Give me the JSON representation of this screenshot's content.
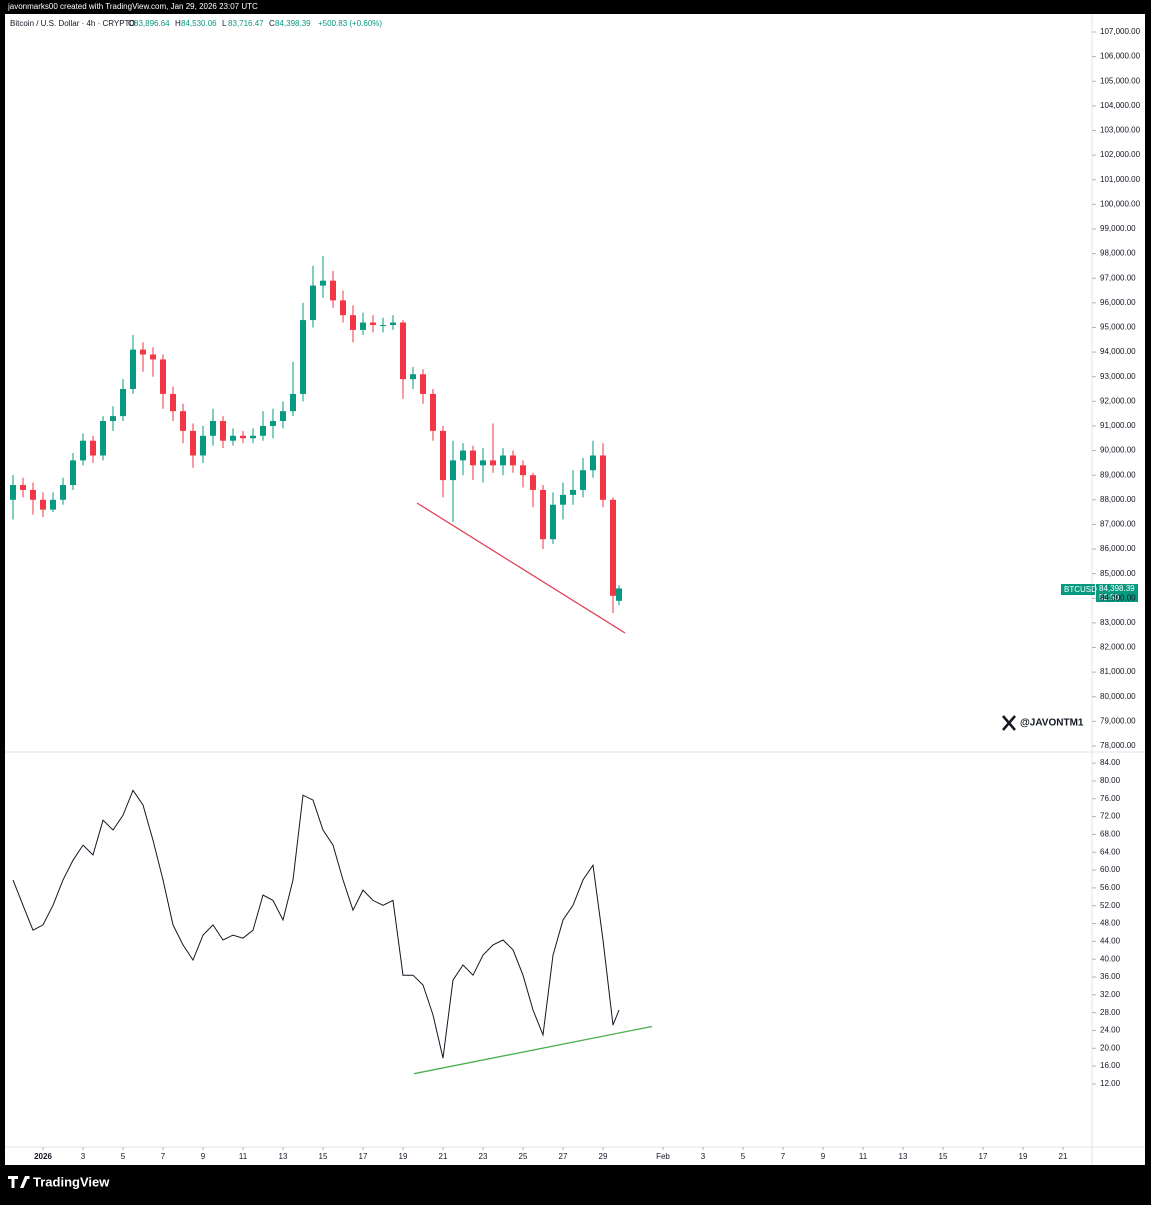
{
  "header": {
    "caption": "javonmarks00 created with TradingView.com, Jan 29, 2026 23:07 UTC",
    "symbol": "Bitcoin / U.S. Dollar · 4h · CRYPTO",
    "ohlc": [
      {
        "key": "O",
        "text": "83,896.64"
      },
      {
        "key": "H",
        "text": "84,530.06"
      },
      {
        "key": "L",
        "text": "83,716.47"
      },
      {
        "key": "C",
        "text": "84,398.39"
      }
    ],
    "change": "+500.83 (+0.60%)"
  },
  "price_tag": {
    "symbol": "BTCUSD",
    "price": "84,398.39",
    "countdown": "52:50"
  },
  "watermark": "@JAVONTM1",
  "footer": {
    "brand": "TradingView"
  },
  "chart_data": [
    {
      "type": "candlestick",
      "up_color": "#089981",
      "down_color": "#f23645",
      "x": [
        -0.5,
        0,
        0.5,
        1,
        1.5,
        2,
        2.5,
        3,
        3.5,
        4,
        4.5,
        5,
        5.5,
        6,
        6.5,
        7,
        7.5,
        8,
        8.5,
        9,
        9.5,
        10,
        10.5,
        11,
        11.5,
        12,
        12.5,
        13,
        13.5,
        14,
        14.5,
        15,
        15.5,
        16,
        16.5,
        17,
        17.5,
        18,
        18.5,
        19,
        19.5,
        20,
        20.5,
        21,
        21.5,
        22,
        22.5,
        23,
        23.5,
        24,
        24.5,
        25,
        25.5,
        26,
        26.5,
        27,
        27.5,
        28,
        28.5,
        29,
        29.5,
        29.8
      ],
      "open": [
        88000,
        88600,
        88400,
        88000,
        87600,
        88000,
        88600,
        89600,
        90400,
        89800,
        91200,
        91400,
        92500,
        94100,
        93900,
        93700,
        92300,
        91600,
        90800,
        89800,
        90600,
        91200,
        90400,
        90600,
        90500,
        90600,
        91000,
        91200,
        91600,
        92300,
        95300,
        96700,
        96900,
        96100,
        95500,
        94900,
        95200,
        95100,
        95100,
        95200,
        92900,
        93100,
        92300,
        90800,
        88800,
        89600,
        90000,
        89400,
        89600,
        89400,
        89800,
        89400,
        89000,
        88400,
        86400,
        87800,
        88200,
        88400,
        89200,
        89800,
        88000,
        83896.64
      ],
      "high": [
        89000,
        88900,
        88700,
        88300,
        88300,
        88900,
        89900,
        90700,
        90600,
        91400,
        91800,
        92900,
        94700,
        94400,
        94200,
        93900,
        92600,
        91900,
        91100,
        91000,
        91700,
        91400,
        90900,
        90800,
        90900,
        91600,
        91700,
        92000,
        93600,
        96000,
        97500,
        97900,
        97300,
        96500,
        95900,
        95600,
        95500,
        95400,
        95500,
        95300,
        93400,
        93300,
        92500,
        91000,
        90400,
        90300,
        90200,
        90100,
        91100,
        90100,
        90000,
        89600,
        89100,
        88600,
        88300,
        88700,
        89200,
        89700,
        90400,
        90300,
        88100,
        84530.06
      ],
      "low": [
        87200,
        88100,
        87400,
        87300,
        87500,
        87800,
        88400,
        89400,
        89500,
        89600,
        90800,
        91200,
        92300,
        93200,
        93000,
        91700,
        91200,
        90300,
        89300,
        89500,
        90200,
        90100,
        90200,
        90300,
        90300,
        90400,
        90500,
        90900,
        91400,
        92000,
        95000,
        96200,
        95800,
        95200,
        94400,
        94700,
        94800,
        94800,
        94900,
        92100,
        92500,
        91900,
        90400,
        88100,
        87100,
        89000,
        88800,
        88700,
        89100,
        89000,
        89100,
        88500,
        87700,
        86000,
        86200,
        87200,
        87800,
        88100,
        88900,
        87700,
        83400,
        83716.47
      ],
      "close": [
        88600,
        88400,
        88000,
        87600,
        88000,
        88600,
        89600,
        90400,
        89800,
        91200,
        91400,
        92500,
        94100,
        93900,
        93700,
        92300,
        91600,
        90800,
        89800,
        90600,
        91200,
        90400,
        90600,
        90500,
        90600,
        91000,
        91200,
        91600,
        92300,
        95300,
        96700,
        96900,
        96100,
        95500,
        94900,
        95200,
        95100,
        95100,
        95200,
        92900,
        93100,
        92300,
        90800,
        88800,
        89600,
        90000,
        89400,
        89600,
        89400,
        89800,
        89400,
        89000,
        88400,
        86400,
        87800,
        88200,
        88400,
        89200,
        89800,
        88000,
        84100,
        84398.39
      ],
      "trendline": {
        "color": "#e0435a",
        "x": [
          19.7,
          30.1
        ],
        "y": [
          87870,
          82590
        ]
      },
      "xlim": [
        -0.9,
        53.35
      ],
      "xticks": [
        {
          "value": 1,
          "label": "2026"
        },
        3,
        5,
        7,
        9,
        11,
        13,
        15,
        17,
        19,
        21,
        23,
        25,
        27,
        29,
        {
          "value": 32,
          "label": "Feb"
        },
        {
          "value": 34,
          "label": "3"
        },
        {
          "value": 36,
          "label": "5"
        },
        {
          "value": 38,
          "label": "7"
        },
        {
          "value": 40,
          "label": "9"
        },
        {
          "value": 42,
          "label": "11"
        },
        {
          "value": 44,
          "label": "13"
        },
        {
          "value": 46,
          "label": "15"
        },
        {
          "value": 48,
          "label": "17"
        },
        {
          "value": 50,
          "label": "19"
        },
        {
          "value": 52,
          "label": "21"
        }
      ],
      "ylim": [
        77756,
        107691
      ],
      "yticks": [
        {
          "value": 78000,
          "label": "78,000.00"
        },
        {
          "value": 79000,
          "label": "79,000.00"
        },
        {
          "value": 80000,
          "label": "80,000.00"
        },
        {
          "value": 81000,
          "label": "81,000.00"
        },
        {
          "value": 82000,
          "label": "82,000.00"
        },
        {
          "value": 83000,
          "label": "83,000.00"
        },
        {
          "value": 84000,
          "label": "84,000.00"
        },
        {
          "value": 85000,
          "label": "85,000.00"
        },
        {
          "value": 86000,
          "label": "86,000.00"
        },
        {
          "value": 87000,
          "label": "87,000.00"
        },
        {
          "value": 88000,
          "label": "88,000.00"
        },
        {
          "value": 89000,
          "label": "89,000.00"
        },
        {
          "value": 90000,
          "label": "90,000.00"
        },
        {
          "value": 91000,
          "label": "91,000.00"
        },
        {
          "value": 92000,
          "label": "92,000.00"
        },
        {
          "value": 93000,
          "label": "93,000.00"
        },
        {
          "value": 94000,
          "label": "94,000.00"
        },
        {
          "value": 95000,
          "label": "95,000.00"
        },
        {
          "value": 96000,
          "label": "96,000.00"
        },
        {
          "value": 97000,
          "label": "97,000.00"
        },
        {
          "value": 98000,
          "label": "98,000.00"
        },
        {
          "value": 99000,
          "label": "99,000.00"
        },
        {
          "value": 100000,
          "label": "100,000.00"
        },
        {
          "value": 101000,
          "label": "101,000.00"
        },
        {
          "value": 102000,
          "label": "102,000.00"
        },
        {
          "value": 103000,
          "label": "103,000.00"
        },
        {
          "value": 104000,
          "label": "104,000.00"
        },
        {
          "value": 105000,
          "label": "105,000.00"
        },
        {
          "value": 106000,
          "label": "106,000.00"
        },
        {
          "value": 107000,
          "label": "107,000.00"
        }
      ]
    },
    {
      "type": "line",
      "color": "#131722",
      "x": [
        -0.5,
        0,
        0.5,
        1,
        1.5,
        2,
        2.5,
        3,
        3.5,
        4,
        4.5,
        5,
        5.5,
        6,
        6.5,
        7,
        7.5,
        8,
        8.5,
        9,
        9.5,
        10,
        10.5,
        11,
        11.5,
        12,
        12.5,
        13,
        13.5,
        14,
        14.5,
        15,
        15.5,
        16,
        16.5,
        17,
        17.5,
        18,
        18.5,
        19,
        19.5,
        20,
        20.5,
        21,
        21.5,
        22,
        22.5,
        23,
        23.5,
        24,
        24.5,
        25,
        25.5,
        26,
        26.5,
        27,
        27.5,
        28,
        28.5,
        29,
        29.5,
        29.8
      ],
      "values": [
        57.8,
        52.1,
        46.5,
        47.7,
        52.1,
        57.8,
        62.2,
        65.6,
        63.4,
        71.2,
        69.0,
        72.3,
        77.9,
        74.6,
        66.7,
        57.8,
        47.7,
        43.2,
        39.8,
        45.4,
        47.7,
        44.3,
        45.4,
        44.7,
        46.5,
        54.4,
        53.2,
        48.8,
        57.8,
        76.8,
        75.7,
        69.0,
        65.6,
        57.8,
        51.0,
        55.5,
        53.2,
        52.1,
        53.2,
        36.4,
        36.4,
        34.2,
        27.5,
        17.8,
        35.3,
        38.7,
        36.4,
        40.9,
        43.2,
        44.3,
        42.1,
        36.4,
        28.6,
        23.0,
        40.9,
        48.8,
        52.1,
        57.8,
        61.1,
        44.3,
        25.2,
        28.6
      ],
      "trendline": {
        "color": "#4caf50",
        "x": [
          19.55,
          31.45
        ],
        "y": [
          14.3,
          24.9
        ]
      },
      "xlim": [
        -0.9,
        53.35
      ],
      "ylim": [
        -0.58,
        86.5
      ],
      "yticks": [
        {
          "value": 12,
          "label": "12.00"
        },
        {
          "value": 16,
          "label": "16.00"
        },
        {
          "value": 20,
          "label": "20.00"
        },
        {
          "value": 24,
          "label": "24.00"
        },
        {
          "value": 28,
          "label": "28.00"
        },
        {
          "value": 32,
          "label": "32.00"
        },
        {
          "value": 36,
          "label": "36.00"
        },
        {
          "value": 40,
          "label": "40.00"
        },
        {
          "value": 44,
          "label": "44.00"
        },
        {
          "value": 48,
          "label": "48.00"
        },
        {
          "value": 52,
          "label": "52.00"
        },
        {
          "value": 56,
          "label": "56.00"
        },
        {
          "value": 60,
          "label": "60.00"
        },
        {
          "value": 64,
          "label": "64.00"
        },
        {
          "value": 68,
          "label": "68.00"
        },
        {
          "value": 72,
          "label": "72.00"
        },
        {
          "value": 76,
          "label": "76.00"
        },
        {
          "value": 80,
          "label": "80.00"
        },
        {
          "value": 84,
          "label": "84.00"
        }
      ]
    }
  ]
}
